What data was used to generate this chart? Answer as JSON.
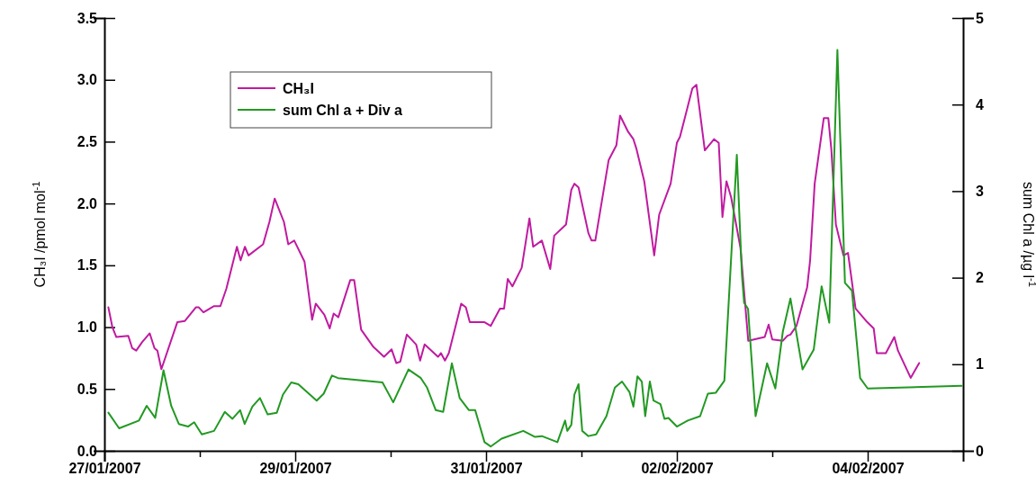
{
  "chart_data": {
    "type": "line",
    "ylabel": "CH₃I /pmol mol$^{-1}$",
    "y2label": "sum Chl a /µg l$^{-1}$",
    "legend": "top left",
    "marker": "none",
    "line_style": "solid",
    "grid": false,
    "xlim": [
      "2007-01-27",
      "2007-02-05"
    ],
    "xticks": [
      {
        "value": "2007-01-27",
        "label": "27/01/2007"
      },
      {
        "value": "2007-01-28",
        "label": null
      },
      {
        "value": "2007-01-29",
        "label": "29/01/2007"
      },
      {
        "value": "2007-01-30",
        "label": null
      },
      {
        "value": "2007-01-31",
        "label": "31/01/2007"
      },
      {
        "value": "2007-02-01",
        "label": null
      },
      {
        "value": "2007-02-02",
        "label": "02/02/2007"
      },
      {
        "value": "2007-02-03",
        "label": null
      },
      {
        "value": "2007-02-04",
        "label": "04/02/2007"
      }
    ],
    "ylim": [
      0,
      3.5
    ],
    "yticks": [
      {
        "value": 0,
        "label": "0.0"
      },
      {
        "value": 0.5,
        "label": "0.5"
      },
      {
        "value": 1,
        "label": "1.0"
      },
      {
        "value": 1.5,
        "label": "1.5"
      },
      {
        "value": 2,
        "label": "2.0"
      },
      {
        "value": 2.5,
        "label": "2.5"
      },
      {
        "value": 3,
        "label": "3.0"
      },
      {
        "value": 3.5,
        "label": "3.5"
      }
    ],
    "y2lim": [
      0,
      5
    ],
    "y2ticks": [
      0,
      1,
      2,
      3,
      4,
      5
    ],
    "series": [
      {
        "name": "CH₃I",
        "color": "#c01aa0",
        "x": [
          "2007-01-27T01:00",
          "2007-01-27T02:00",
          "2007-01-27T03:00",
          "2007-01-27T06:00",
          "2007-01-27T07:00",
          "2007-01-27T08:00",
          "2007-01-27T09:30",
          "2007-01-27T11:24",
          "2007-01-27T12:36",
          "2007-01-27T13:20",
          "2007-01-27T14:20",
          "2007-01-27T18:20",
          "2007-01-27T20:15",
          "2007-01-27T23:00",
          "2007-01-27T23:45",
          "2007-01-28T00:55",
          "2007-01-28T03:35",
          "2007-01-28T05:10",
          "2007-01-28T06:40",
          "2007-01-28T09:20",
          "2007-01-28T10:15",
          "2007-01-28T11:20",
          "2007-01-28T12:15",
          "2007-01-28T15:55",
          "2007-01-28T17:30",
          "2007-01-28T18:50",
          "2007-01-28T21:10",
          "2007-01-28T22:15",
          "2007-01-28T23:45",
          "2007-01-29T02:20",
          "2007-01-29T04:15",
          "2007-01-29T05:10",
          "2007-01-29T07:20",
          "2007-01-29T08:40",
          "2007-01-29T09:40",
          "2007-01-29T10:50",
          "2007-01-29T13:50",
          "2007-01-29T14:50",
          "2007-01-29T16:35",
          "2007-01-29T19:40",
          "2007-01-29T22:20",
          "2007-01-30T00:15",
          "2007-01-30T01:25",
          "2007-01-30T02:25",
          "2007-01-30T04:05",
          "2007-01-30T06:25",
          "2007-01-30T07:25",
          "2007-01-30T08:33",
          "2007-01-30T11:55",
          "2007-01-30T12:40",
          "2007-01-30T13:40",
          "2007-01-30T14:38",
          "2007-01-30T17:45",
          "2007-01-30T18:55",
          "2007-01-30T19:55",
          "2007-01-30T23:37",
          "2007-01-31T01:10",
          "2007-01-31T03:30",
          "2007-01-31T04:32",
          "2007-01-31T05:28",
          "2007-01-31T06:38",
          "2007-01-31T08:58",
          "2007-01-31T10:55",
          "2007-01-31T11:51",
          "2007-01-31T14:02",
          "2007-01-31T16:09",
          "2007-01-31T17:09",
          "2007-01-31T20:07",
          "2007-01-31T21:27",
          "2007-01-31T22:14",
          "2007-01-31T23:16",
          "2007-02-01T01:45",
          "2007-02-01T02:33",
          "2007-02-01T03:29",
          "2007-02-01T06:50",
          "2007-02-01T08:47",
          "2007-02-01T09:43",
          "2007-02-01T11:44",
          "2007-02-01T13:04",
          "2007-02-01T13:51",
          "2007-02-01T15:48",
          "2007-02-01T18:18",
          "2007-02-01T19:33",
          "2007-02-01T22:26",
          "2007-02-02T00:00",
          "2007-02-02T00:47",
          "2007-02-02T03:54",
          "2007-02-02T04:55",
          "2007-02-02T07:02",
          "2007-02-02T09:22",
          "2007-02-02T10:32",
          "2007-02-02T11:28",
          "2007-02-02T12:29",
          "2007-02-02T13:39",
          "2007-02-02T16:00",
          "2007-02-02T17:57",
          "2007-02-02T22:06",
          "2007-02-02T23:05",
          "2007-02-03T00:00",
          "2007-02-03T02:40",
          "2007-02-03T03:49",
          "2007-02-03T04:34",
          "2007-02-03T06:05",
          "2007-02-03T08:46",
          "2007-02-03T09:31",
          "2007-02-03T10:40",
          "2007-02-03T12:57",
          "2007-02-03T14:06",
          "2007-02-03T14:51",
          "2007-02-03T16:00",
          "2007-02-03T17:54",
          "2007-02-03T19:03",
          "2007-02-03T20:57",
          "2007-02-03T23:37",
          "2007-02-04T01:31",
          "2007-02-04T02:17",
          "2007-02-04T04:34",
          "2007-02-04T06:42",
          "2007-02-04T07:37",
          "2007-02-04T10:49",
          "2007-02-04T12:57"
        ],
        "values": [
          1.16,
          1.0,
          0.92,
          0.93,
          0.83,
          0.81,
          0.88,
          0.95,
          0.83,
          0.81,
          0.66,
          1.04,
          1.05,
          1.16,
          1.16,
          1.12,
          1.17,
          1.17,
          1.31,
          1.65,
          1.54,
          1.65,
          1.58,
          1.67,
          1.85,
          2.04,
          1.85,
          1.67,
          1.7,
          1.53,
          1.06,
          1.19,
          1.1,
          0.99,
          1.11,
          1.08,
          1.38,
          1.38,
          0.98,
          0.84,
          0.76,
          0.82,
          0.71,
          0.72,
          0.94,
          0.86,
          0.73,
          0.86,
          0.76,
          0.79,
          0.73,
          0.79,
          1.19,
          1.16,
          1.04,
          1.04,
          1.01,
          1.15,
          1.15,
          1.39,
          1.33,
          1.48,
          1.88,
          1.65,
          1.7,
          1.47,
          1.74,
          1.83,
          2.11,
          2.16,
          2.13,
          1.76,
          1.7,
          1.7,
          2.35,
          2.47,
          2.71,
          2.58,
          2.52,
          2.44,
          2.18,
          1.58,
          1.91,
          2.16,
          2.49,
          2.54,
          2.93,
          2.96,
          2.43,
          2.52,
          2.49,
          1.89,
          2.18,
          2.05,
          1.64,
          0.89,
          0.92,
          1.02,
          0.9,
          0.89,
          0.93,
          0.94,
          1.01,
          1.32,
          1.54,
          2.16,
          2.69,
          2.69,
          2.44,
          1.83,
          1.58,
          1.6,
          1.15,
          1.05,
          0.99,
          0.79,
          0.79,
          0.92,
          0.81,
          0.59,
          0.71
        ]
      },
      {
        "name": "sum Chl a + Div a",
        "color": "#229922",
        "axis": "y2",
        "x": [
          "2007-01-27T01:00",
          "2007-01-27T03:42",
          "2007-01-27T08:42",
          "2007-01-27T10:38",
          "2007-01-27T12:47",
          "2007-01-27T14:52",
          "2007-01-27T16:48",
          "2007-01-27T18:43",
          "2007-01-27T21:02",
          "2007-01-27T22:35",
          "2007-01-28T00:30",
          "2007-01-28T03:35",
          "2007-01-28T06:17",
          "2007-01-28T08:13",
          "2007-01-28T10:08",
          "2007-01-28T11:17",
          "2007-01-28T13:13",
          "2007-01-28T15:08",
          "2007-01-28T17:04",
          "2007-01-28T19:22",
          "2007-01-28T20:55",
          "2007-01-28T23:00",
          "2007-01-29T00:46",
          "2007-01-29T05:24",
          "2007-01-29T07:10",
          "2007-01-29T09:14",
          "2007-01-29T10:46",
          "2007-01-29T21:57",
          "2007-01-30T00:39",
          "2007-01-30T04:29",
          "2007-01-30T07:36",
          "2007-01-30T09:10",
          "2007-01-30T11:21",
          "2007-01-30T13:13",
          "2007-01-30T15:24",
          "2007-01-30T17:22",
          "2007-01-30T19:42",
          "2007-01-30T21:16",
          "2007-01-30T23:37",
          "2007-01-31T01:10",
          "2007-01-31T03:54",
          "2007-01-31T09:22",
          "2007-01-31T12:20",
          "2007-01-31T14:02",
          "2007-01-31T17:57",
          "2007-01-31T19:53",
          "2007-01-31T20:26",
          "2007-01-31T21:27",
          "2007-01-31T22:14",
          "2007-01-31T23:16",
          "2007-02-01T00:12",
          "2007-02-01T01:45",
          "2007-02-01T03:42",
          "2007-02-01T06:17",
          "2007-02-01T08:24",
          "2007-02-01T10:12",
          "2007-02-01T12:04",
          "2007-02-01T13:04",
          "2007-02-01T14:05",
          "2007-02-01T15:11",
          "2007-02-01T16:02",
          "2007-02-01T17:12",
          "2007-02-01T18:08",
          "2007-02-01T19:52",
          "2007-02-01T20:53",
          "2007-02-01T21:53",
          "2007-02-02T00:00",
          "2007-02-02T02:44",
          "2007-02-02T05:51",
          "2007-02-02T07:48",
          "2007-02-02T09:46",
          "2007-02-02T11:57",
          "2007-02-02T15:05",
          "2007-02-02T16:22",
          "2007-02-02T16:55",
          "2007-02-02T17:54",
          "2007-02-02T19:48",
          "2007-02-02T22:42",
          "2007-02-03T00:46",
          "2007-02-03T02:40",
          "2007-02-03T04:34",
          "2007-02-03T07:37",
          "2007-02-03T10:26",
          "2007-02-03T12:25",
          "2007-02-03T14:20",
          "2007-02-03T16:23",
          "2007-02-03T18:17",
          "2007-02-03T20:02",
          "2007-02-03T22:06",
          "2007-02-04T00:00",
          "2007-02-04T23:37"
        ],
        "values": [
          0.44,
          0.26,
          0.35,
          0.52,
          0.38,
          0.93,
          0.52,
          0.31,
          0.28,
          0.33,
          0.19,
          0.23,
          0.45,
          0.37,
          0.47,
          0.31,
          0.51,
          0.61,
          0.42,
          0.44,
          0.65,
          0.79,
          0.77,
          0.58,
          0.66,
          0.87,
          0.84,
          0.79,
          0.56,
          0.94,
          0.84,
          0.73,
          0.47,
          0.45,
          1.01,
          0.61,
          0.47,
          0.47,
          0.1,
          0.05,
          0.14,
          0.23,
          0.16,
          0.17,
          0.1,
          0.35,
          0.23,
          0.3,
          0.65,
          0.77,
          0.23,
          0.17,
          0.19,
          0.4,
          0.73,
          0.8,
          0.68,
          0.51,
          0.86,
          0.8,
          0.4,
          0.8,
          0.58,
          0.54,
          0.37,
          0.38,
          0.28,
          0.35,
          0.4,
          0.66,
          0.67,
          0.81,
          3.42,
          2.03,
          1.71,
          1.64,
          0.4,
          1.01,
          0.72,
          1.38,
          1.76,
          0.94,
          1.17,
          1.9,
          1.48,
          4.63,
          1.94,
          1.85,
          0.84,
          0.72,
          0.75
        ]
      }
    ]
  }
}
